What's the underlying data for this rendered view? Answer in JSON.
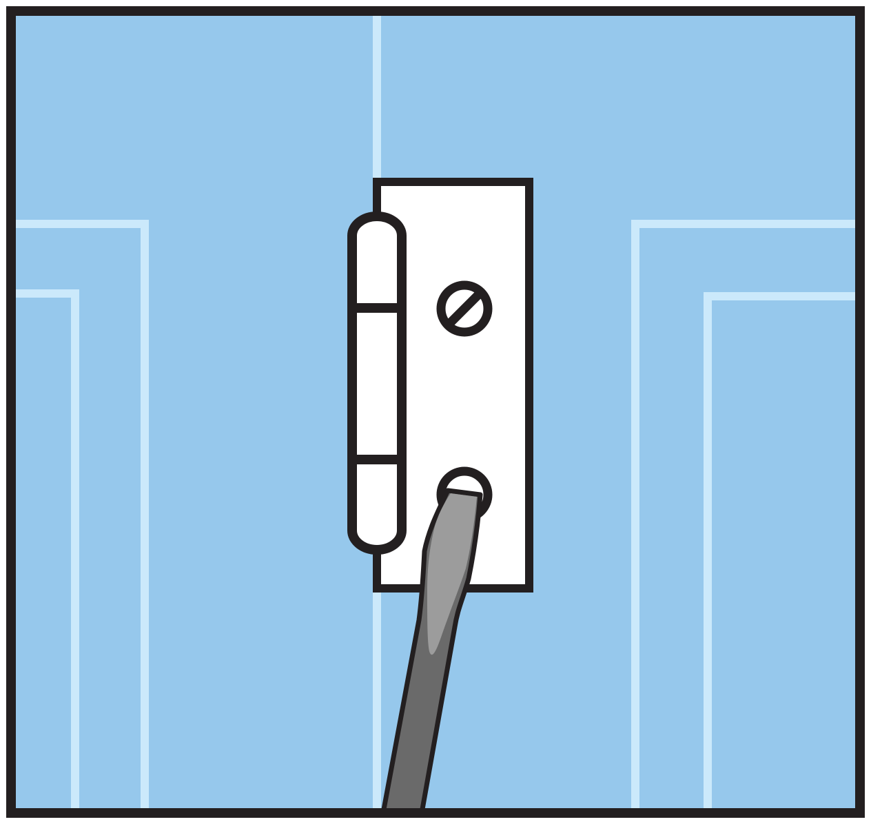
{
  "illustration": {
    "subject": "screwdriver-removing-hinge-screw",
    "colors": {
      "door": "#96c8ec",
      "trim_line": "#cbe9fb",
      "outline": "#231f20",
      "hinge_plate": "#ffffff",
      "screwdriver_shaft": "#6a6a6a",
      "screwdriver_tip": "#9c9c9c"
    },
    "icons": [
      "frame",
      "door-panel",
      "hinge",
      "hinge-knuckle",
      "screw",
      "screwdriver"
    ]
  }
}
